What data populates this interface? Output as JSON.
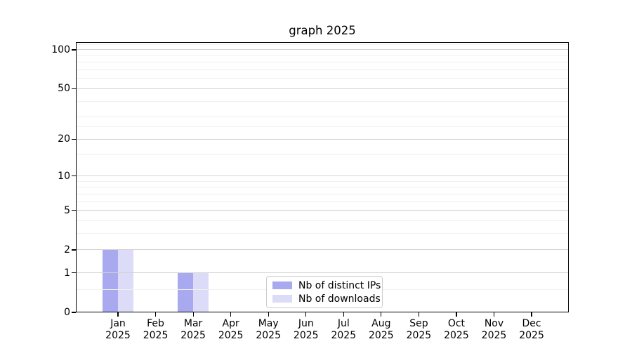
{
  "chart_data": {
    "type": "bar",
    "title": "graph 2025",
    "categories": [
      "Jan",
      "Feb",
      "Mar",
      "Apr",
      "May",
      "Jun",
      "Jul",
      "Aug",
      "Sep",
      "Oct",
      "Nov",
      "Dec"
    ],
    "year_label": "2025",
    "series": [
      {
        "name": "Nb of distinct IPs",
        "color": "#a9a9f0",
        "values": [
          2,
          0,
          1,
          0,
          0,
          0,
          0,
          0,
          0,
          0,
          0,
          0
        ]
      },
      {
        "name": "Nb of downloads",
        "color": "#dcdcf8",
        "values": [
          2,
          0,
          1,
          0,
          0,
          0,
          0,
          0,
          0,
          0,
          0,
          0
        ]
      }
    ],
    "y_axis": {
      "scale": "log10(1+value)",
      "ticks": [
        0,
        1,
        2,
        5,
        10,
        20,
        50,
        100
      ],
      "minor_gridlines": [
        0.5,
        3,
        4,
        6,
        7,
        8,
        9,
        15,
        25,
        30,
        40,
        60,
        70,
        80,
        90,
        110
      ],
      "max": 114.6
    },
    "x_axis": {
      "tick_labels_line2": "2025"
    },
    "grid": true,
    "legend_position": "lower center",
    "colors": {
      "grid_major": "#d2d2d2",
      "grid_minor": "#f0f0f0",
      "axis": "#000000",
      "legend_border": "#cccccc",
      "background": "#ffffff"
    }
  }
}
